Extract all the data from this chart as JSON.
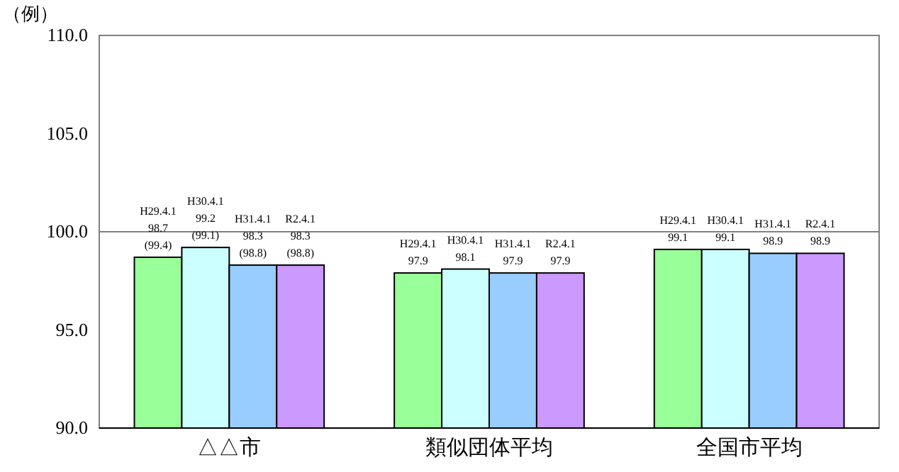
{
  "chart_data": {
    "type": "bar",
    "ylabel": "（例）",
    "categories": [
      "△△市",
      "類似団体平均",
      "全国市平均"
    ],
    "series": [
      {
        "name": "H29.4.1",
        "color": "#99ff99",
        "values": [
          98.7,
          97.9,
          99.1
        ],
        "value_labels": [
          "98.7\n(99.4)",
          "97.9",
          "99.1"
        ]
      },
      {
        "name": "H30.4.1",
        "color": "#ccffff",
        "values": [
          99.2,
          98.1,
          99.1
        ],
        "value_labels": [
          "99.2\n(99.1)",
          "98.1",
          "99.1"
        ]
      },
      {
        "name": "H31.4.1",
        "color": "#99ccff",
        "values": [
          98.3,
          97.9,
          98.9
        ],
        "value_labels": [
          "98.3\n(98.8)",
          "97.9",
          "98.9"
        ]
      },
      {
        "name": "R2.4.1",
        "color": "#cc99ff",
        "values": [
          98.3,
          97.9,
          98.9
        ],
        "value_labels": [
          "98.3\n(98.8)",
          "97.9",
          "98.9"
        ]
      }
    ],
    "ylim": [
      90,
      110
    ],
    "yticks": [
      {
        "value": 90,
        "label": "90.0"
      },
      {
        "value": 95,
        "label": "95.0"
      },
      {
        "value": 100,
        "label": "100.0"
      },
      {
        "value": 105,
        "label": "105.0"
      },
      {
        "value": 110,
        "label": "110.0"
      }
    ],
    "ref_lines": [
      {
        "axis": "y",
        "value": 100,
        "color": "#808080"
      }
    ],
    "grid": false
  }
}
